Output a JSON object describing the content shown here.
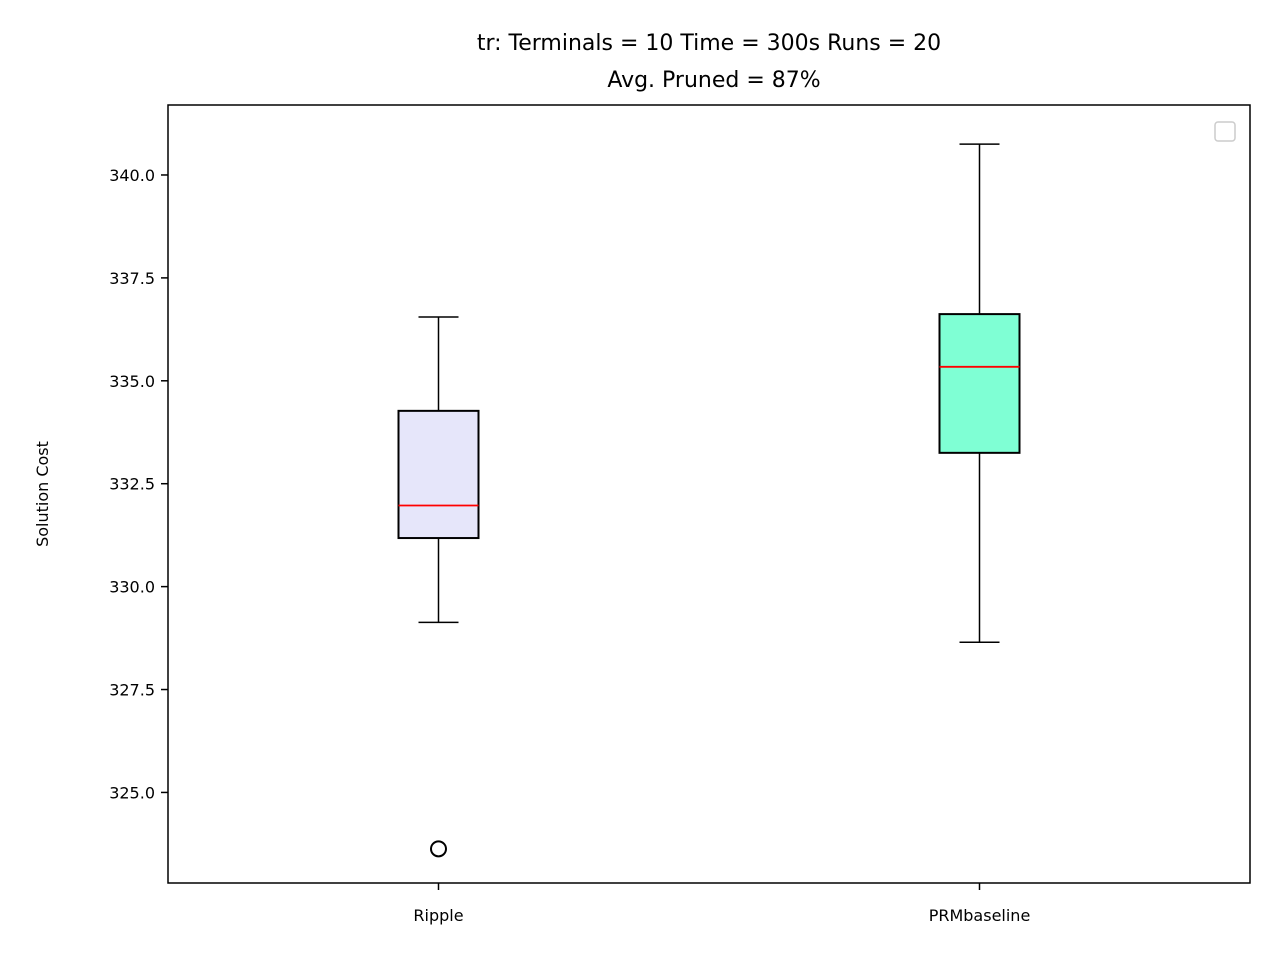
{
  "chart_data": {
    "type": "box",
    "title": "tr:  Terminals = 10  Time = 300s  Runs = 20",
    "subtitle": "Avg. Pruned = 87%",
    "xlabel": "",
    "ylabel": "Solution Cost",
    "ylim": [
      322.8,
      341.7
    ],
    "yticks": [
      325.0,
      327.5,
      330.0,
      332.5,
      335.0,
      337.5,
      340.0
    ],
    "ytick_labels": [
      "325.0",
      "327.5",
      "330.0",
      "332.5",
      "335.0",
      "337.5",
      "340.0"
    ],
    "categories": [
      "Ripple",
      "PRMbaseline"
    ],
    "boxes": [
      {
        "name": "Ripple",
        "whisker_low": 329.13,
        "q1": 331.18,
        "median": 331.97,
        "q3": 334.27,
        "whisker_high": 336.55,
        "outliers": [
          323.63
        ],
        "fill": "#e6e6fa"
      },
      {
        "name": "PRMbaseline",
        "whisker_low": 328.65,
        "q1": 333.25,
        "median": 335.34,
        "q3": 336.62,
        "whisker_high": 340.75,
        "outliers": [],
        "fill": "#7fffd4"
      }
    ],
    "median_color": "#ff0000",
    "grid": false,
    "legend": {
      "position": "upper-right",
      "entries": []
    }
  }
}
